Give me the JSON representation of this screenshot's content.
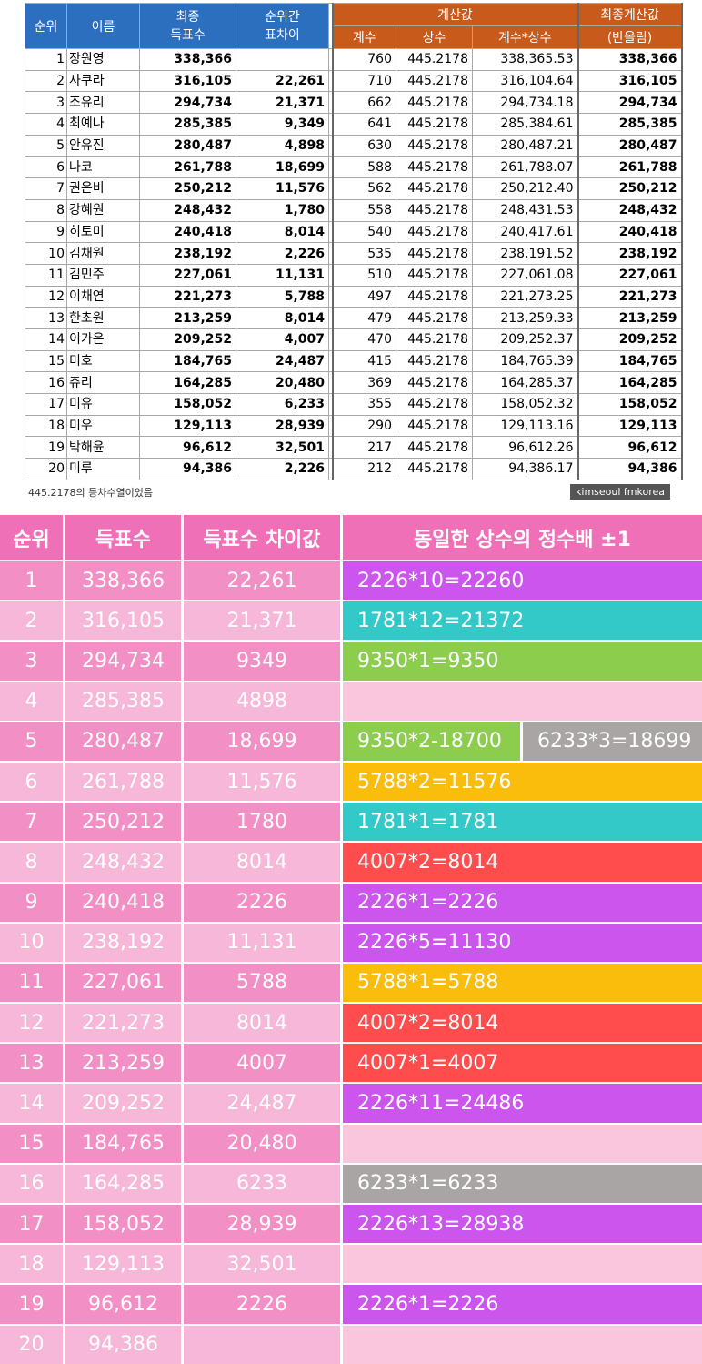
{
  "top_table": {
    "headers": {
      "rank": "순위",
      "name": "이름",
      "final_votes": "최종\n득표수",
      "gap": "순위간\n표차이",
      "calc": "계산값",
      "coef": "계수",
      "const": "상수",
      "product": "계수*상수",
      "final_calc": "최종계산값",
      "rounded": "(반올림)"
    },
    "rows": [
      {
        "rank": "1",
        "name": "장원영",
        "votes": "338,366",
        "gap": "",
        "coef": "760",
        "const": "445.2178",
        "product": "338,365.53",
        "final": "338,366"
      },
      {
        "rank": "2",
        "name": "사쿠라",
        "votes": "316,105",
        "gap": "22,261",
        "coef": "710",
        "const": "445.2178",
        "product": "316,104.64",
        "final": "316,105"
      },
      {
        "rank": "3",
        "name": "조유리",
        "votes": "294,734",
        "gap": "21,371",
        "coef": "662",
        "const": "445.2178",
        "product": "294,734.18",
        "final": "294,734"
      },
      {
        "rank": "4",
        "name": "최예나",
        "votes": "285,385",
        "gap": "9,349",
        "coef": "641",
        "const": "445.2178",
        "product": "285,384.61",
        "final": "285,385"
      },
      {
        "rank": "5",
        "name": "안유진",
        "votes": "280,487",
        "gap": "4,898",
        "coef": "630",
        "const": "445.2178",
        "product": "280,487.21",
        "final": "280,487"
      },
      {
        "rank": "6",
        "name": "나코",
        "votes": "261,788",
        "gap": "18,699",
        "coef": "588",
        "const": "445.2178",
        "product": "261,788.07",
        "final": "261,788"
      },
      {
        "rank": "7",
        "name": "권은비",
        "votes": "250,212",
        "gap": "11,576",
        "coef": "562",
        "const": "445.2178",
        "product": "250,212.40",
        "final": "250,212"
      },
      {
        "rank": "8",
        "name": "강혜원",
        "votes": "248,432",
        "gap": "1,780",
        "coef": "558",
        "const": "445.2178",
        "product": "248,431.53",
        "final": "248,432"
      },
      {
        "rank": "9",
        "name": "히토미",
        "votes": "240,418",
        "gap": "8,014",
        "coef": "540",
        "const": "445.2178",
        "product": "240,417.61",
        "final": "240,418"
      },
      {
        "rank": "10",
        "name": "김채원",
        "votes": "238,192",
        "gap": "2,226",
        "coef": "535",
        "const": "445.2178",
        "product": "238,191.52",
        "final": "238,192"
      },
      {
        "rank": "11",
        "name": "김민주",
        "votes": "227,061",
        "gap": "11,131",
        "coef": "510",
        "const": "445.2178",
        "product": "227,061.08",
        "final": "227,061"
      },
      {
        "rank": "12",
        "name": "이채연",
        "votes": "221,273",
        "gap": "5,788",
        "coef": "497",
        "const": "445.2178",
        "product": "221,273.25",
        "final": "221,273"
      },
      {
        "rank": "13",
        "name": "한초원",
        "votes": "213,259",
        "gap": "8,014",
        "coef": "479",
        "const": "445.2178",
        "product": "213,259.33",
        "final": "213,259"
      },
      {
        "rank": "14",
        "name": "이가은",
        "votes": "209,252",
        "gap": "4,007",
        "coef": "470",
        "const": "445.2178",
        "product": "209,252.37",
        "final": "209,252"
      },
      {
        "rank": "15",
        "name": "미호",
        "votes": "184,765",
        "gap": "24,487",
        "coef": "415",
        "const": "445.2178",
        "product": "184,765.39",
        "final": "184,765"
      },
      {
        "rank": "16",
        "name": "쥬리",
        "votes": "164,285",
        "gap": "20,480",
        "coef": "369",
        "const": "445.2178",
        "product": "164,285.37",
        "final": "164,285"
      },
      {
        "rank": "17",
        "name": "미유",
        "votes": "158,052",
        "gap": "6,233",
        "coef": "355",
        "const": "445.2178",
        "product": "158,052.32",
        "final": "158,052"
      },
      {
        "rank": "18",
        "name": "미우",
        "votes": "129,113",
        "gap": "28,939",
        "coef": "290",
        "const": "445.2178",
        "product": "129,113.16",
        "final": "129,113"
      },
      {
        "rank": "19",
        "name": "박해윤",
        "votes": "96,612",
        "gap": "32,501",
        "coef": "217",
        "const": "445.2178",
        "product": "96,612.26",
        "final": "96,612"
      },
      {
        "rank": "20",
        "name": "미루",
        "votes": "94,386",
        "gap": "2,226",
        "coef": "212",
        "const": "445.2178",
        "product": "94,386.17",
        "final": "94,386"
      }
    ],
    "note": "445.2178의 등차수열이었음",
    "watermark": "kimseoul fmkorea"
  },
  "bottom_table": {
    "headers": {
      "rank": "순위",
      "votes": "득표수",
      "diff": "득표수 차이값",
      "multiple": "동일한 상수의 정수배 ±1"
    },
    "colors": {
      "purple": "#cc55ee",
      "teal": "#33c9c9",
      "green": "#8ccd4e",
      "gray": "#aaa5a5",
      "amber": "#fbbd0b",
      "red": "#ff4c4c"
    },
    "rows": [
      {
        "rank": "1",
        "votes": "338,366",
        "diff": "22,261",
        "chips": [
          {
            "text": "2226*10=22260",
            "color": "purple"
          }
        ]
      },
      {
        "rank": "2",
        "votes": "316,105",
        "diff": "21,371",
        "chips": [
          {
            "text": "1781*12=21372",
            "color": "teal"
          }
        ]
      },
      {
        "rank": "3",
        "votes": "294,734",
        "diff": "9349",
        "chips": [
          {
            "text": "9350*1=9350",
            "color": "green"
          }
        ]
      },
      {
        "rank": "4",
        "votes": "285,385",
        "diff": "4898",
        "chips": []
      },
      {
        "rank": "5",
        "votes": "280,487",
        "diff": "18,699",
        "chips": [
          {
            "text": "9350*2-18700",
            "color": "green"
          },
          {
            "text": "6233*3=18699",
            "color": "gray"
          }
        ]
      },
      {
        "rank": "6",
        "votes": "261,788",
        "diff": "11,576",
        "chips": [
          {
            "text": "5788*2=11576",
            "color": "amber"
          }
        ]
      },
      {
        "rank": "7",
        "votes": "250,212",
        "diff": "1780",
        "chips": [
          {
            "text": "1781*1=1781",
            "color": "teal"
          }
        ]
      },
      {
        "rank": "8",
        "votes": "248,432",
        "diff": "8014",
        "chips": [
          {
            "text": "4007*2=8014",
            "color": "red"
          }
        ]
      },
      {
        "rank": "9",
        "votes": "240,418",
        "diff": "2226",
        "chips": [
          {
            "text": "2226*1=2226",
            "color": "purple"
          }
        ]
      },
      {
        "rank": "10",
        "votes": "238,192",
        "diff": "11,131",
        "chips": [
          {
            "text": "2226*5=11130",
            "color": "purple"
          }
        ]
      },
      {
        "rank": "11",
        "votes": "227,061",
        "diff": "5788",
        "chips": [
          {
            "text": "5788*1=5788",
            "color": "amber"
          }
        ]
      },
      {
        "rank": "12",
        "votes": "221,273",
        "diff": "8014",
        "chips": [
          {
            "text": "4007*2=8014",
            "color": "red"
          }
        ]
      },
      {
        "rank": "13",
        "votes": "213,259",
        "diff": "4007",
        "chips": [
          {
            "text": "4007*1=4007",
            "color": "red"
          }
        ]
      },
      {
        "rank": "14",
        "votes": "209,252",
        "diff": "24,487",
        "chips": [
          {
            "text": "2226*11=24486",
            "color": "purple"
          }
        ]
      },
      {
        "rank": "15",
        "votes": "184,765",
        "diff": "20,480",
        "chips": []
      },
      {
        "rank": "16",
        "votes": "164,285",
        "diff": "6233",
        "chips": [
          {
            "text": "6233*1=6233",
            "color": "gray"
          }
        ]
      },
      {
        "rank": "17",
        "votes": "158,052",
        "diff": "28,939",
        "chips": [
          {
            "text": "2226*13=28938",
            "color": "purple"
          }
        ]
      },
      {
        "rank": "18",
        "votes": "129,113",
        "diff": "32,501",
        "chips": []
      },
      {
        "rank": "19",
        "votes": "96,612",
        "diff": "2226",
        "chips": [
          {
            "text": "2226*1=2226",
            "color": "purple"
          }
        ]
      },
      {
        "rank": "20",
        "votes": "94,386",
        "diff": "",
        "chips": []
      }
    ]
  }
}
